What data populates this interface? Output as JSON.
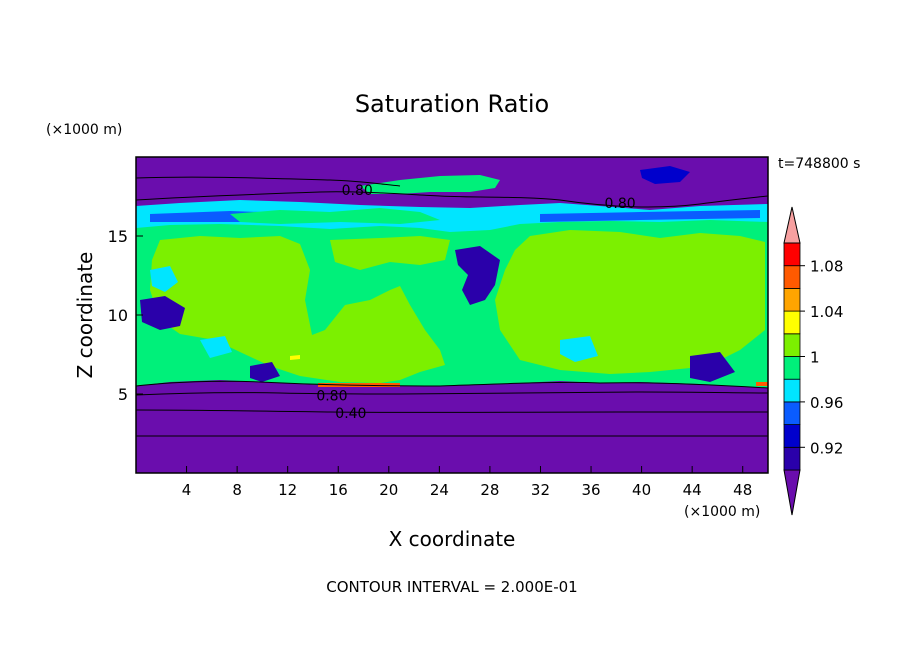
{
  "chart_data": {
    "type": "heatmap",
    "title": "Saturation Ratio",
    "xlabel": "X coordinate",
    "ylabel": "Z coordinate",
    "x_unit": "(×1000 m)",
    "y_unit": "(×1000 m)",
    "time_label": "t=748800 s",
    "footer": "CONTOUR INTERVAL = 2.000E-01",
    "xlim": [
      0,
      50
    ],
    "ylim": [
      0,
      20
    ],
    "x_ticks": [
      "4",
      "8",
      "12",
      "16",
      "20",
      "24",
      "28",
      "32",
      "36",
      "40",
      "44",
      "48"
    ],
    "y_ticks": [
      "5",
      "10",
      "15"
    ],
    "contour_labels": [
      {
        "text": "0.80",
        "x": 17.5,
        "z": 17.9
      },
      {
        "text": "0.80",
        "x": 38.3,
        "z": 17.1
      },
      {
        "text": "0.80",
        "x": 15.5,
        "z": 4.9
      },
      {
        "text": "0.40",
        "x": 17.0,
        "z": 3.8
      }
    ],
    "colorbar": {
      "tick_labels": [
        "1.08",
        "1.04",
        "1",
        "0.96",
        "0.92"
      ],
      "levels": [
        0.9,
        0.92,
        0.94,
        0.96,
        0.98,
        1.0,
        1.02,
        1.04,
        1.06,
        1.08,
        1.1
      ],
      "colors": [
        "#6a0dad",
        "#2a00aa",
        "#0000cc",
        "#0a5cff",
        "#00e5ff",
        "#00f07a",
        "#7cf000",
        "#ffff00",
        "#ffa500",
        "#ff5a00",
        "#ff0000",
        "#f7a0a0"
      ]
    }
  }
}
